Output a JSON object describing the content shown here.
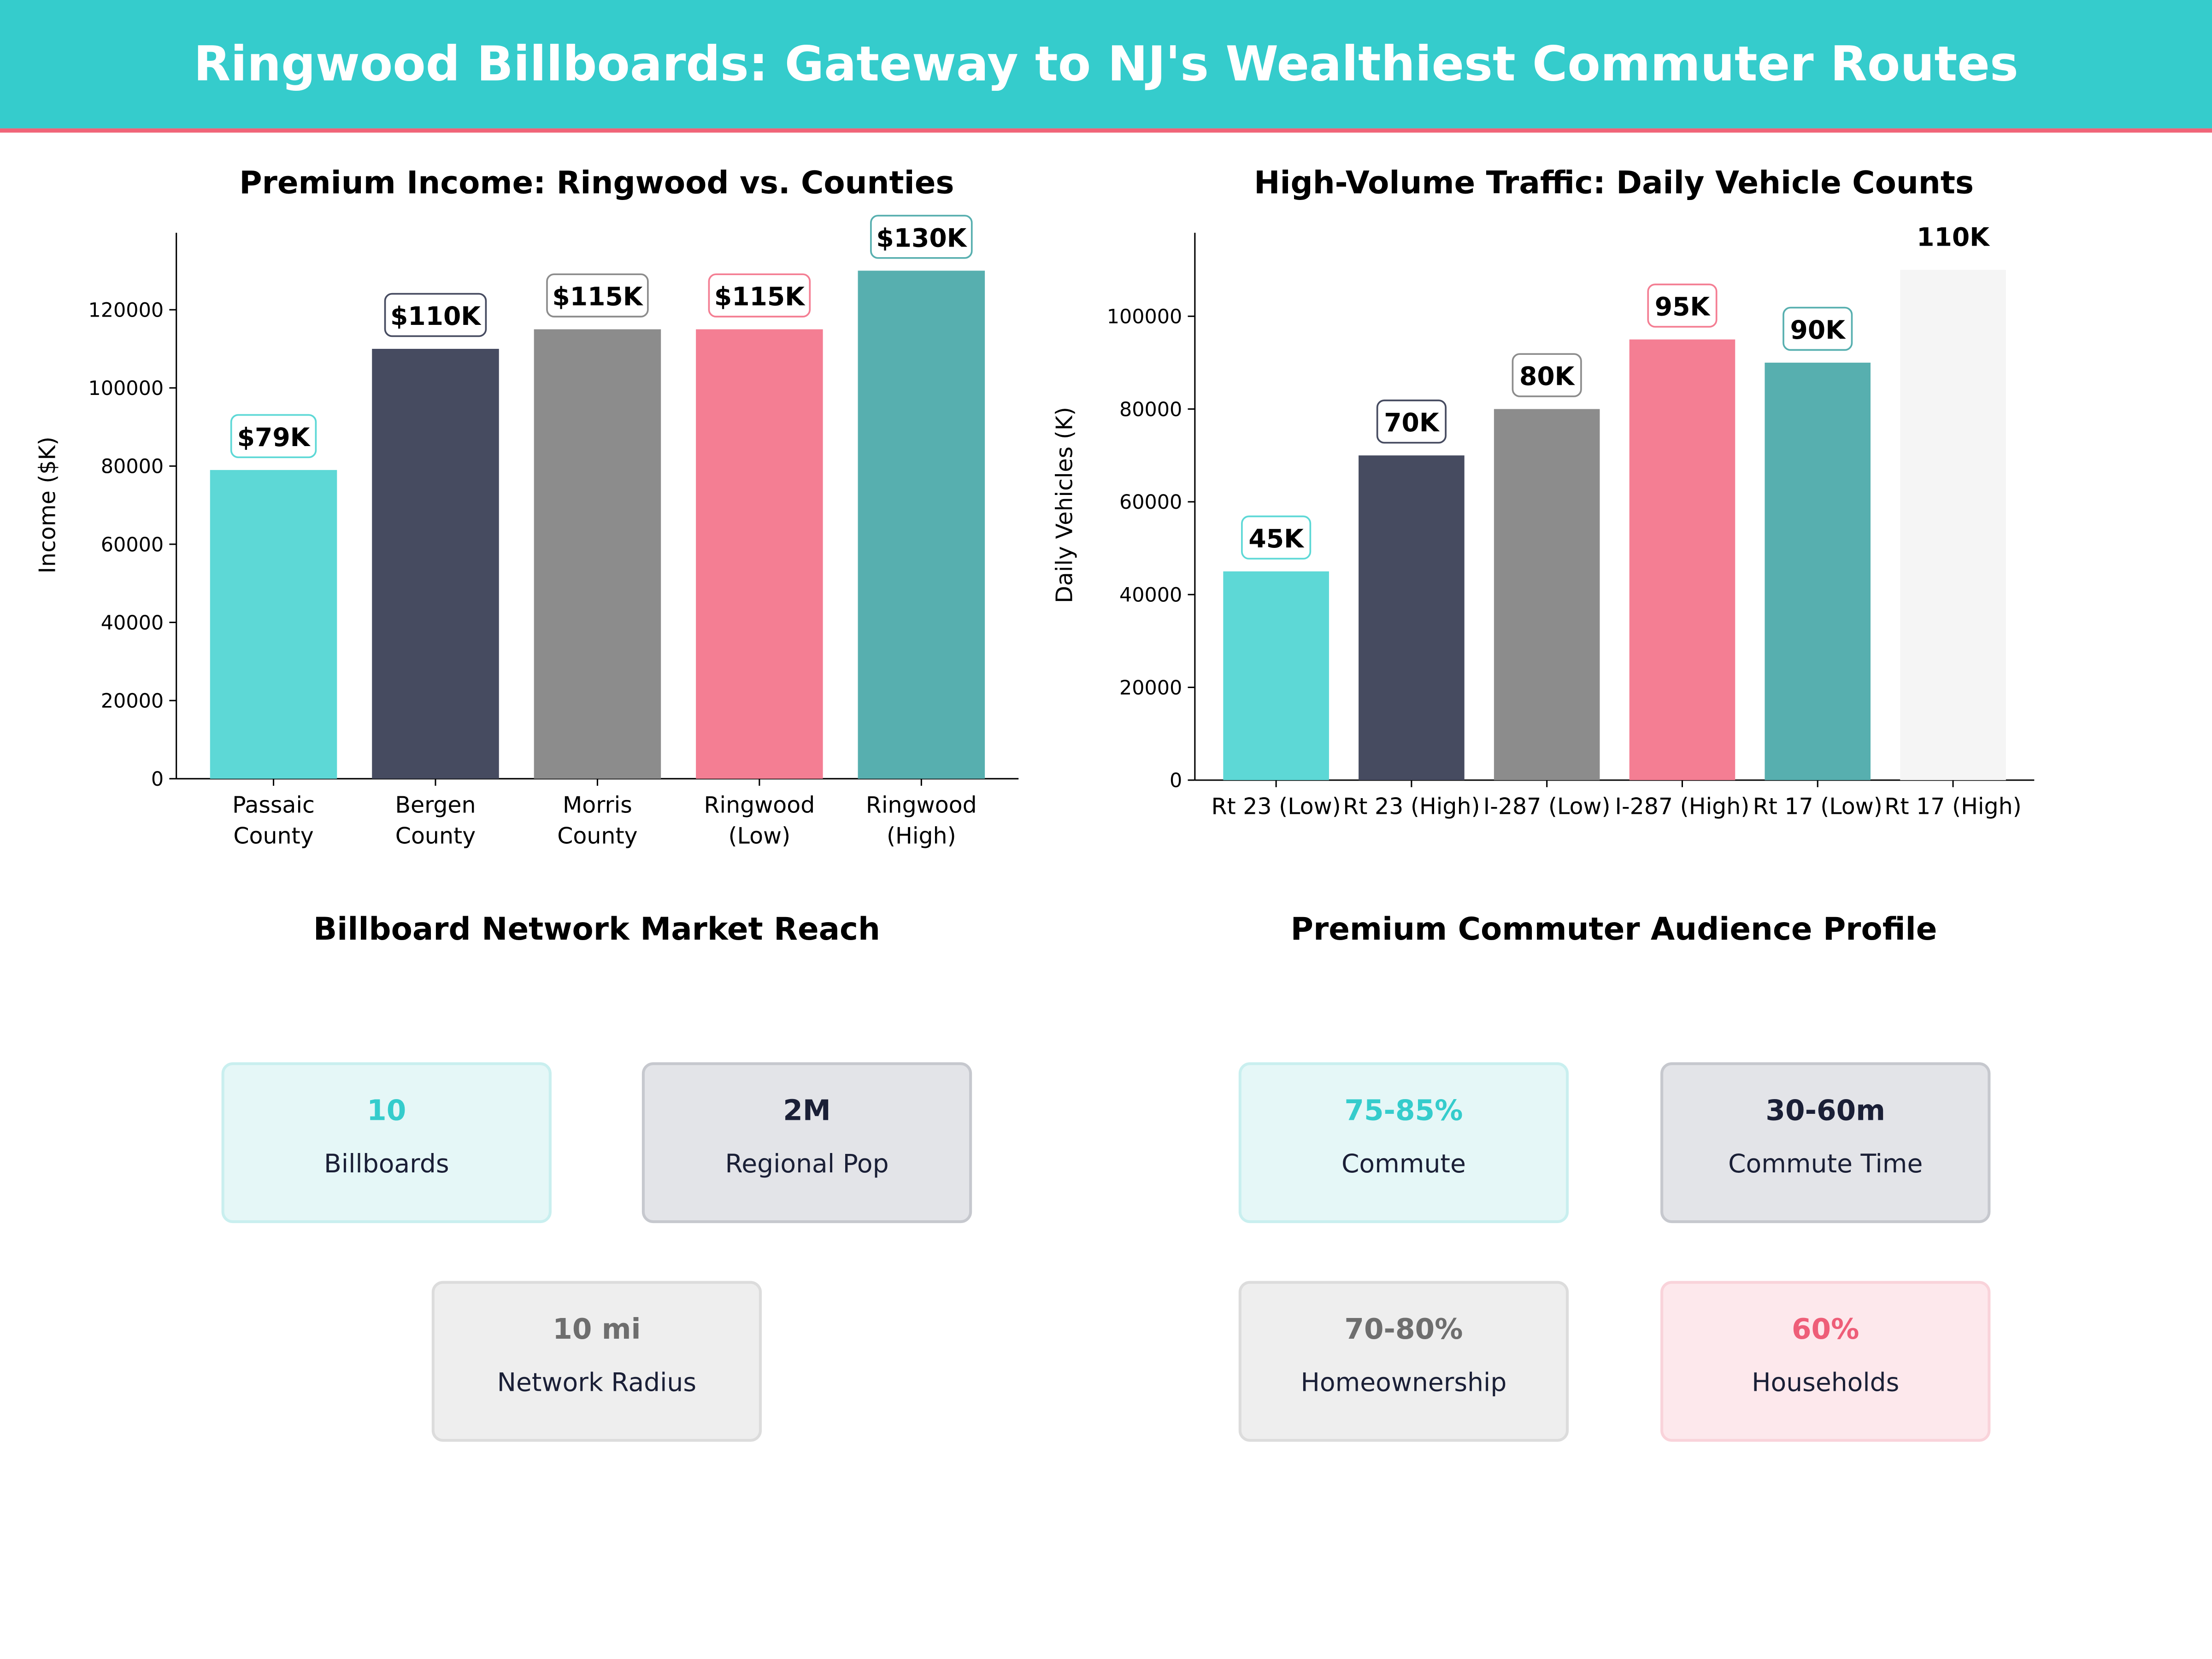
{
  "header": {
    "title": "Ringwood Billboards: Gateway to NJ's Wealthiest Commuter Routes",
    "bg_color": "#35CCCC",
    "accent_line_color": "#F06478"
  },
  "chart_data": [
    {
      "type": "bar",
      "title": "Premium Income: Ringwood vs. Counties",
      "xlabel": "",
      "ylabel": "Income ($K)",
      "ylim": [
        0,
        139700
      ],
      "yticks": [
        0,
        20000,
        40000,
        60000,
        80000,
        100000,
        120000
      ],
      "categories": [
        "Passaic\nCounty",
        "Bergen\nCounty",
        "Morris\nCounty",
        "Ringwood\n(Low)",
        "Ringwood\n(High)"
      ],
      "values": [
        79000,
        110000,
        115000,
        115000,
        130000
      ],
      "data_labels": [
        "$79K",
        "$110K",
        "$115K",
        "$115K",
        "$130K"
      ],
      "colors": [
        "#5DD8D6",
        "#464B60",
        "#8C8C8C",
        "#F47E93",
        "#57AFAF"
      ],
      "label_edge_colors": [
        "#5DD8D6",
        "#464B60",
        "#8C8C8C",
        "#F47E93",
        "#57AFAF"
      ],
      "grid": false
    },
    {
      "type": "bar",
      "title": "High-Volume Traffic: Daily Vehicle Counts",
      "xlabel": "",
      "ylabel": "Daily Vehicles (K)",
      "ylim": [
        0,
        118000
      ],
      "yticks": [
        0,
        20000,
        40000,
        60000,
        80000,
        100000
      ],
      "categories": [
        "Rt 23 (Low)",
        "Rt 23 (High)",
        "I-287 (Low)",
        "I-287 (High)",
        "Rt 17 (Low)",
        "Rt 17 (High)"
      ],
      "values": [
        45000,
        70000,
        80000,
        95000,
        90000,
        110000
      ],
      "data_labels": [
        "45K",
        "70K",
        "80K",
        "95K",
        "90K",
        "110K"
      ],
      "colors": [
        "#5DD8D6",
        "#464B60",
        "#8C8C8C",
        "#F47E93",
        "#57AFAF",
        "#F5F5F5"
      ],
      "label_edge_colors": [
        "#5DD8D6",
        "#464B60",
        "#8C8C8C",
        "#F47E93",
        "#57AFAF",
        "#FFFFFF"
      ],
      "grid": false
    }
  ],
  "market_reach": {
    "title": "Billboard Network Market Reach",
    "cards": [
      {
        "value": "10",
        "label": "Billboards",
        "value_color": "#35CCCC",
        "fill": "#E5F7F7",
        "edge": "#C9EFEF"
      },
      {
        "value": "2M",
        "label": "Regional Pop",
        "value_color": "#1A1F36",
        "fill": "#E3E4E8",
        "edge": "#C6C8CE"
      },
      {
        "value": "10 mi",
        "label": "Network Radius",
        "value_color": "#6E6E6E",
        "fill": "#EEEEEE",
        "edge": "#DCDCDC"
      }
    ]
  },
  "audience_profile": {
    "title": "Premium Commuter Audience Profile",
    "cards": [
      {
        "value": "75-85%",
        "label": "Commute",
        "value_color": "#35CCCC",
        "fill": "#E5F7F7",
        "edge": "#C9EFEF"
      },
      {
        "value": "30-60m",
        "label": "Commute Time",
        "value_color": "#1A1F36",
        "fill": "#E3E4E8",
        "edge": "#C6C8CE"
      },
      {
        "value": "70-80%",
        "label": "Homeownership",
        "value_color": "#6E6E6E",
        "fill": "#EEEEEE",
        "edge": "#DCDCDC"
      },
      {
        "value": "60%",
        "label": "Households",
        "value_color": "#EE5E78",
        "fill": "#FDE8EC",
        "edge": "#F9D3DA"
      }
    ]
  }
}
